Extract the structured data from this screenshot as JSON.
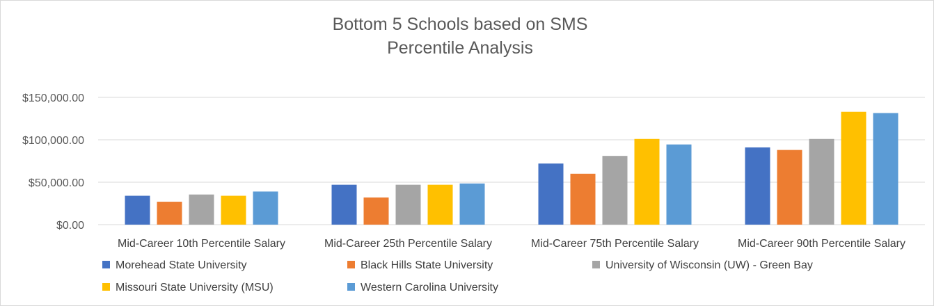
{
  "chart_data": {
    "type": "bar",
    "title_lines": [
      "Bottom 5 Schools based on SMS",
      "Percentile Analysis"
    ],
    "categories": [
      "Mid-Career 10th Percentile Salary",
      "Mid-Career 25th Percentile Salary",
      "Mid-Career 75th Percentile Salary",
      "Mid-Career 90th Percentile Salary"
    ],
    "series": [
      {
        "name": "Morehead State University",
        "color": "#4472c4",
        "values": [
          34000,
          47000,
          72000,
          91000
        ]
      },
      {
        "name": "Black Hills State University",
        "color": "#ed7d31",
        "values": [
          27000,
          32000,
          60000,
          88000
        ]
      },
      {
        "name": "University of Wisconsin (UW) - Green Bay",
        "color": "#a5a5a5",
        "values": [
          35500,
          47000,
          81000,
          101000
        ]
      },
      {
        "name": "Missouri State University (MSU)",
        "color": "#ffc000",
        "values": [
          34000,
          47000,
          101000,
          133000
        ]
      },
      {
        "name": "Western Carolina University",
        "color": "#5b9bd5",
        "values": [
          39000,
          48500,
          94500,
          131500
        ]
      }
    ],
    "yticks": [
      {
        "value": 0,
        "label": "$0.00"
      },
      {
        "value": 50000,
        "label": "$50,000.00"
      },
      {
        "value": 100000,
        "label": "$100,000.00"
      },
      {
        "value": 150000,
        "label": "$150,000.00"
      }
    ],
    "ylim": [
      0,
      150000
    ],
    "grid": true,
    "legend_position": "bottom"
  }
}
